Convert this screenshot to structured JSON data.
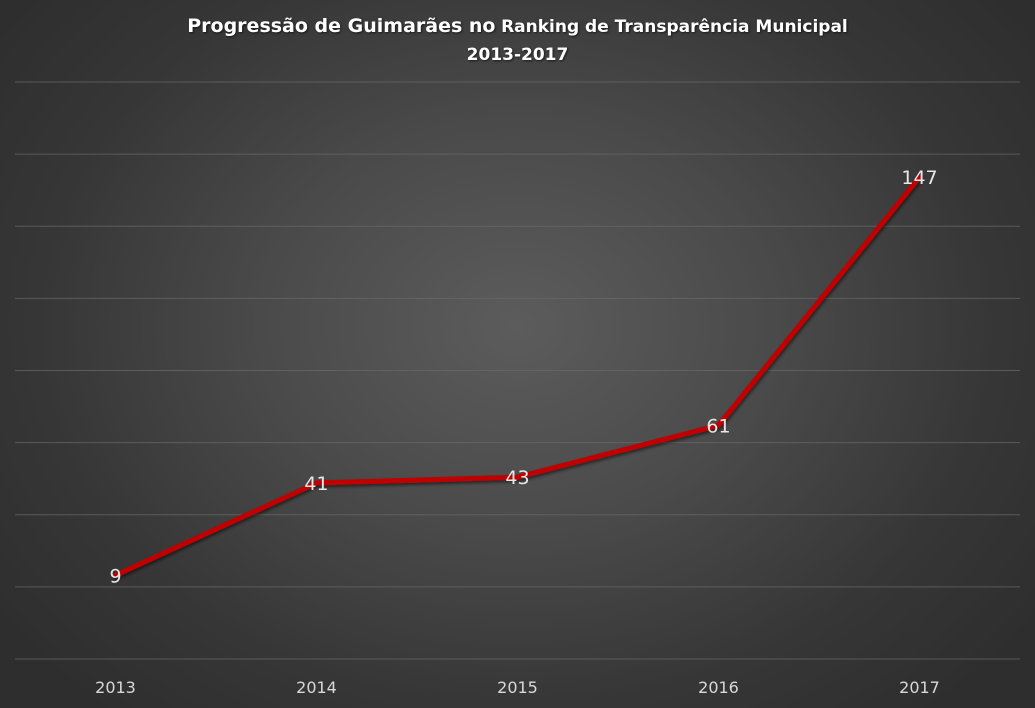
{
  "chart_data": {
    "type": "line",
    "title_part1": "Progressão de Guimarães no",
    "title_part2": "Ranking de Transparência Municipal",
    "subtitle": "2013-2017",
    "categories": [
      "2013",
      "2014",
      "2015",
      "2016",
      "2017"
    ],
    "series": [
      {
        "values": [
          9,
          41,
          43,
          61,
          147
        ],
        "color": "#c00000"
      }
    ],
    "ylim": [
      -20,
      180
    ],
    "gridlines": 8,
    "grid": true,
    "legend": "none",
    "data_labels": true,
    "label_color": "#e8e8e8",
    "tick_color": "#d9d9d9"
  }
}
